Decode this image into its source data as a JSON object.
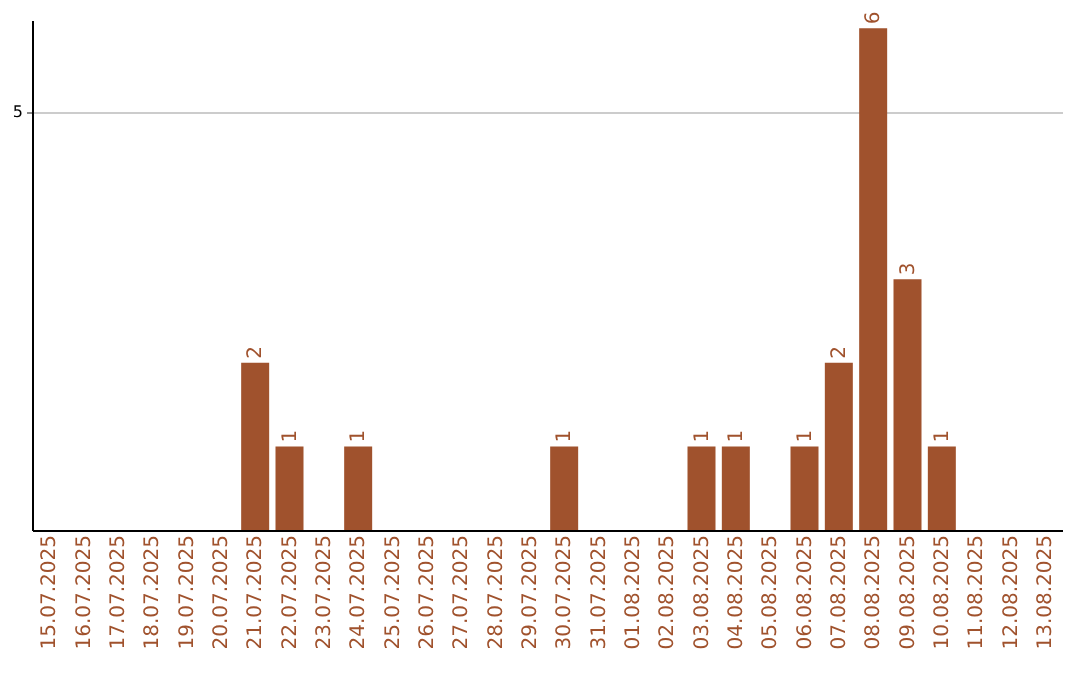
{
  "chart_data": {
    "type": "bar",
    "categories": [
      "15.07.2025",
      "16.07.2025",
      "17.07.2025",
      "18.07.2025",
      "19.07.2025",
      "20.07.2025",
      "21.07.2025",
      "22.07.2025",
      "23.07.2025",
      "24.07.2025",
      "25.07.2025",
      "26.07.2025",
      "27.07.2025",
      "28.07.2025",
      "29.07.2025",
      "30.07.2025",
      "31.07.2025",
      "01.08.2025",
      "02.08.2025",
      "03.08.2025",
      "04.08.2025",
      "05.08.2025",
      "06.08.2025",
      "07.08.2025",
      "08.08.2025",
      "09.08.2025",
      "10.08.2025",
      "11.08.2025",
      "12.08.2025",
      "13.08.2025"
    ],
    "values": [
      null,
      null,
      null,
      null,
      null,
      null,
      2,
      1,
      null,
      1,
      null,
      null,
      null,
      null,
      null,
      1,
      null,
      null,
      null,
      1,
      1,
      null,
      1,
      2,
      6,
      3,
      1,
      null,
      null,
      null
    ],
    "color": "#a0522d",
    "ylim": [
      0,
      6.1
    ],
    "yticks": [
      5
    ],
    "grid": "y",
    "data_labels": true
  }
}
